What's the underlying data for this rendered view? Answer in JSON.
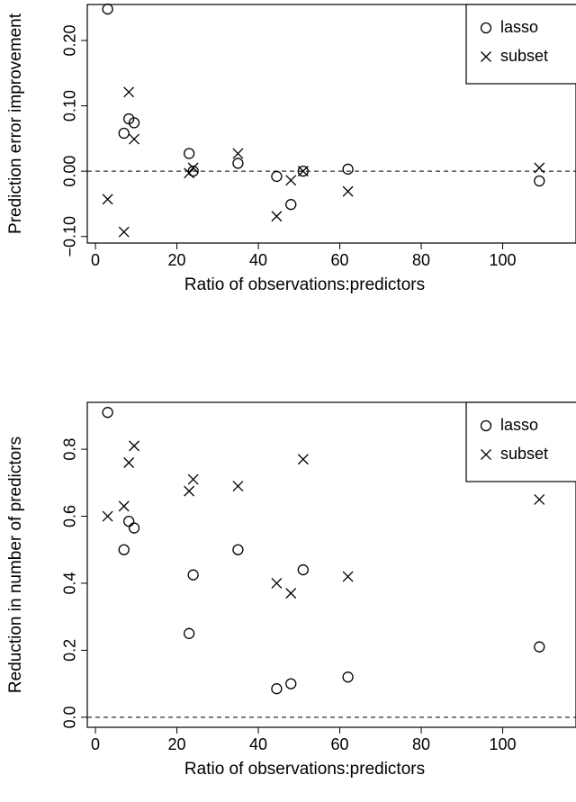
{
  "chart_data": [
    {
      "type": "scatter",
      "x_label": "Ratio of observations:predictors",
      "y_label": "Prediction error improvement",
      "x": [
        3,
        7,
        8.2,
        9.5,
        23,
        24,
        35,
        44.5,
        48,
        51,
        62,
        109
      ],
      "series": [
        {
          "name": "lasso",
          "marker": "circle",
          "color": "#000000",
          "values": [
            0.248,
            0.058,
            0.08,
            0.074,
            0.027,
            0.0,
            0.012,
            -0.008,
            -0.051,
            0.0,
            0.003,
            -0.015
          ]
        },
        {
          "name": "subset",
          "marker": "x",
          "color": "#000000",
          "values": [
            -0.043,
            -0.093,
            0.121,
            0.049,
            -0.003,
            0.005,
            0.027,
            -0.069,
            -0.014,
            0.0,
            -0.031,
            0.005
          ]
        }
      ],
      "xlim": [
        -2,
        118
      ],
      "xticks": [
        0,
        20,
        40,
        60,
        80,
        100
      ],
      "ylim": [
        -0.11,
        0.255
      ],
      "yticks": [
        {
          "value": -0.1,
          "label": "−0.10"
        },
        {
          "value": 0,
          "label": "0.00"
        },
        {
          "value": 0.1,
          "label": "0.10"
        },
        {
          "value": 0.2,
          "label": "0.20"
        }
      ],
      "hline": 0,
      "legend": "top-right"
    },
    {
      "type": "scatter",
      "x_label": "Ratio of observations:predictors",
      "y_label": "Reduction in number of predictors",
      "x": [
        3,
        7,
        8.2,
        9.5,
        23,
        24,
        35,
        44.5,
        48,
        51,
        62,
        109
      ],
      "series": [
        {
          "name": "lasso",
          "marker": "circle",
          "color": "#000000",
          "values": [
            0.91,
            0.5,
            0.585,
            0.565,
            0.25,
            0.425,
            0.5,
            0.085,
            0.1,
            0.44,
            0.12,
            0.21
          ]
        },
        {
          "name": "subset",
          "marker": "x",
          "color": "#000000",
          "values": [
            0.6,
            0.63,
            0.76,
            0.81,
            0.675,
            0.71,
            0.69,
            0.4,
            0.37,
            0.77,
            0.42,
            0.65
          ]
        }
      ],
      "xlim": [
        -2,
        118
      ],
      "xticks": [
        0,
        20,
        40,
        60,
        80,
        100
      ],
      "ylim": [
        -0.03,
        0.94
      ],
      "yticks": [
        {
          "value": 0,
          "label": "0.0"
        },
        0.2,
        0.4,
        0.6,
        0.8
      ],
      "hline": 0,
      "legend": "top-right"
    }
  ]
}
